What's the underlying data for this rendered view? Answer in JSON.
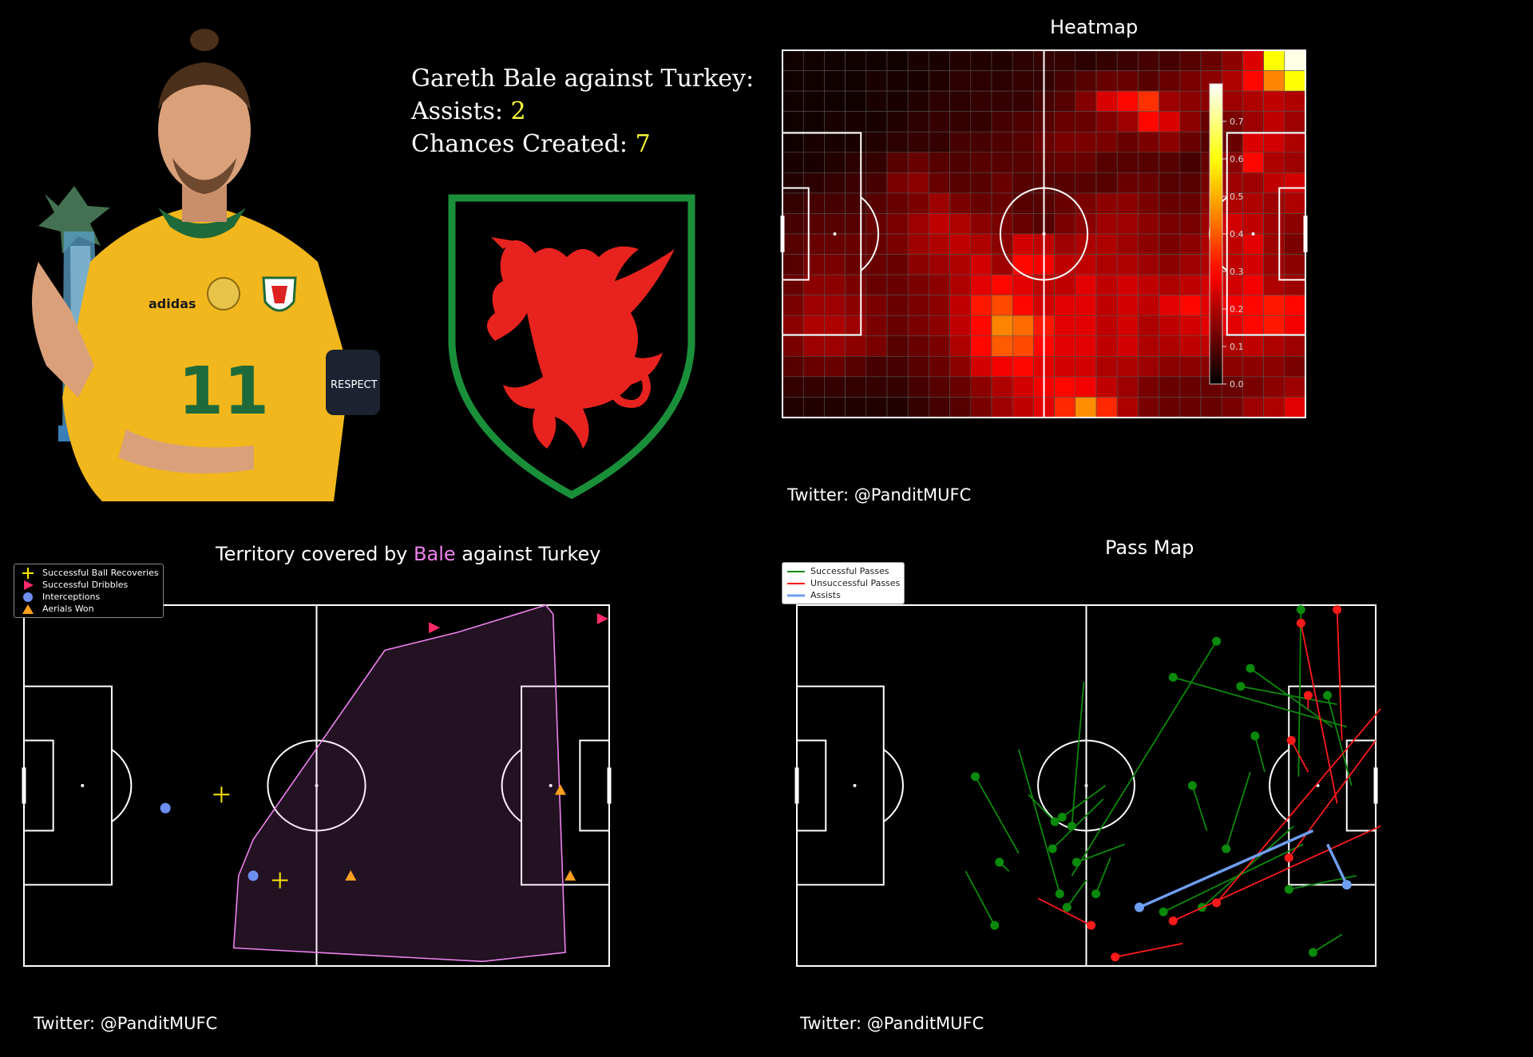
{
  "stats": {
    "line1": "Gareth Bale against Turkey:",
    "assists_label": "Assists: ",
    "assists_value": "2",
    "chances_label": "Chances Created: ",
    "chances_value": "7"
  },
  "colors": {
    "highlight": "#ffff3c",
    "bale_pink": "#ee82ee",
    "successful_pass": "#0a8a0a",
    "unsuccessful_pass": "#ff1a1a",
    "assist": "#6e9ef0",
    "recovery": "#ffe600",
    "dribble": "#ff2a6a",
    "interception": "#6e8ef0",
    "aerial": "#ffa020",
    "crest_green": "#1a8f3a",
    "crest_red": "#e8231f"
  },
  "photo": {
    "shirt_number": "11",
    "armband_text": "RESPECT",
    "brand_text": "adidas"
  },
  "heatmap": {
    "title": "Heatmap",
    "credit": "Twitter: @PanditMUFC",
    "colorbar_ticks": [
      "0.0",
      "0.1",
      "0.2",
      "0.3",
      "0.4",
      "0.5",
      "0.6",
      "0.7"
    ]
  },
  "territory": {
    "title_pre": "Territory covered by ",
    "title_name": "Bale",
    "title_post": " against Turkey",
    "credit": "Twitter: @PanditMUFC",
    "legend": [
      "Successful Ball Recoveries",
      "Successful Dribbles",
      "Interceptions",
      "Aerials Won"
    ]
  },
  "passmap": {
    "title": "Pass Map",
    "credit": "Twitter: @PanditMUFC",
    "legend": [
      "Successful Passes",
      "Unsuccessful Passes",
      "Assists"
    ]
  },
  "chart_data": [
    {
      "type": "heatmap",
      "title": "Heatmap",
      "grid": {
        "cols": 25,
        "rows": 18
      },
      "x_range": [
        0,
        120
      ],
      "y_range": [
        0,
        80
      ],
      "value_range": [
        0,
        0.8
      ],
      "values": [
        [
          0.02,
          0.02,
          0.02,
          0.02,
          0.02,
          0.02,
          0.03,
          0.03,
          0.04,
          0.04,
          0.04,
          0.05,
          0.06,
          0.06,
          0.05,
          0.06,
          0.07,
          0.08,
          0.08,
          0.1,
          0.12,
          0.16,
          0.25,
          0.6,
          0.78
        ],
        [
          0.02,
          0.02,
          0.02,
          0.02,
          0.03,
          0.03,
          0.03,
          0.04,
          0.05,
          0.05,
          0.05,
          0.06,
          0.06,
          0.08,
          0.1,
          0.12,
          0.12,
          0.1,
          0.12,
          0.14,
          0.16,
          0.2,
          0.3,
          0.45,
          0.6
        ],
        [
          0.02,
          0.02,
          0.02,
          0.02,
          0.03,
          0.03,
          0.04,
          0.05,
          0.05,
          0.06,
          0.06,
          0.06,
          0.08,
          0.1,
          0.15,
          0.25,
          0.3,
          0.35,
          0.18,
          0.16,
          0.16,
          0.18,
          0.2,
          0.22,
          0.2
        ],
        [
          0.02,
          0.02,
          0.03,
          0.03,
          0.03,
          0.04,
          0.05,
          0.06,
          0.06,
          0.06,
          0.08,
          0.09,
          0.1,
          0.12,
          0.12,
          0.15,
          0.18,
          0.3,
          0.25,
          0.16,
          0.12,
          0.14,
          0.18,
          0.22,
          0.18
        ],
        [
          0.02,
          0.03,
          0.03,
          0.03,
          0.04,
          0.05,
          0.06,
          0.06,
          0.08,
          0.08,
          0.09,
          0.1,
          0.12,
          0.14,
          0.14,
          0.14,
          0.12,
          0.14,
          0.16,
          0.12,
          0.1,
          0.12,
          0.25,
          0.24,
          0.2
        ],
        [
          0.03,
          0.03,
          0.04,
          0.05,
          0.06,
          0.1,
          0.12,
          0.1,
          0.09,
          0.1,
          0.1,
          0.1,
          0.11,
          0.12,
          0.12,
          0.1,
          0.1,
          0.1,
          0.1,
          0.08,
          0.12,
          0.16,
          0.3,
          0.2,
          0.18
        ],
        [
          0.04,
          0.05,
          0.06,
          0.07,
          0.08,
          0.14,
          0.16,
          0.12,
          0.1,
          0.1,
          0.12,
          0.1,
          0.1,
          0.1,
          0.1,
          0.1,
          0.12,
          0.12,
          0.1,
          0.1,
          0.14,
          0.18,
          0.18,
          0.22,
          0.24
        ],
        [
          0.06,
          0.08,
          0.08,
          0.08,
          0.1,
          0.12,
          0.14,
          0.18,
          0.14,
          0.12,
          0.12,
          0.1,
          0.1,
          0.12,
          0.14,
          0.16,
          0.16,
          0.14,
          0.12,
          0.12,
          0.16,
          0.2,
          0.2,
          0.18,
          0.2
        ],
        [
          0.08,
          0.1,
          0.1,
          0.1,
          0.12,
          0.14,
          0.18,
          0.22,
          0.2,
          0.16,
          0.14,
          0.12,
          0.1,
          0.14,
          0.16,
          0.18,
          0.18,
          0.16,
          0.14,
          0.14,
          0.18,
          0.24,
          0.22,
          0.18,
          0.16
        ],
        [
          0.1,
          0.12,
          0.12,
          0.12,
          0.12,
          0.14,
          0.18,
          0.2,
          0.22,
          0.2,
          0.16,
          0.24,
          0.22,
          0.18,
          0.2,
          0.2,
          0.18,
          0.16,
          0.14,
          0.16,
          0.2,
          0.22,
          0.26,
          0.18,
          0.14
        ],
        [
          0.1,
          0.14,
          0.14,
          0.12,
          0.12,
          0.12,
          0.16,
          0.18,
          0.2,
          0.24,
          0.18,
          0.3,
          0.28,
          0.22,
          0.22,
          0.2,
          0.2,
          0.18,
          0.16,
          0.18,
          0.2,
          0.22,
          0.24,
          0.18,
          0.16
        ],
        [
          0.12,
          0.16,
          0.16,
          0.14,
          0.12,
          0.12,
          0.14,
          0.16,
          0.2,
          0.26,
          0.3,
          0.26,
          0.22,
          0.22,
          0.26,
          0.22,
          0.24,
          0.22,
          0.2,
          0.22,
          0.24,
          0.24,
          0.28,
          0.2,
          0.18
        ],
        [
          0.14,
          0.18,
          0.18,
          0.16,
          0.14,
          0.12,
          0.14,
          0.16,
          0.22,
          0.32,
          0.38,
          0.3,
          0.24,
          0.26,
          0.26,
          0.22,
          0.24,
          0.22,
          0.26,
          0.3,
          0.26,
          0.28,
          0.3,
          0.32,
          0.3
        ],
        [
          0.16,
          0.2,
          0.2,
          0.18,
          0.14,
          0.12,
          0.14,
          0.16,
          0.22,
          0.3,
          0.45,
          0.42,
          0.32,
          0.26,
          0.26,
          0.22,
          0.24,
          0.2,
          0.22,
          0.24,
          0.26,
          0.26,
          0.3,
          0.32,
          0.28
        ],
        [
          0.14,
          0.18,
          0.18,
          0.16,
          0.14,
          0.1,
          0.12,
          0.14,
          0.2,
          0.3,
          0.4,
          0.38,
          0.3,
          0.26,
          0.26,
          0.22,
          0.24,
          0.2,
          0.2,
          0.22,
          0.22,
          0.2,
          0.22,
          0.2,
          0.18
        ],
        [
          0.1,
          0.12,
          0.12,
          0.1,
          0.08,
          0.08,
          0.1,
          0.12,
          0.16,
          0.24,
          0.28,
          0.3,
          0.26,
          0.24,
          0.24,
          0.2,
          0.2,
          0.18,
          0.16,
          0.16,
          0.16,
          0.16,
          0.16,
          0.16,
          0.14
        ],
        [
          0.06,
          0.06,
          0.06,
          0.06,
          0.06,
          0.06,
          0.08,
          0.1,
          0.12,
          0.16,
          0.2,
          0.24,
          0.28,
          0.3,
          0.28,
          0.22,
          0.18,
          0.14,
          0.12,
          0.12,
          0.12,
          0.12,
          0.14,
          0.16,
          0.18
        ],
        [
          0.04,
          0.04,
          0.04,
          0.04,
          0.04,
          0.04,
          0.06,
          0.08,
          0.1,
          0.14,
          0.18,
          0.22,
          0.26,
          0.34,
          0.46,
          0.34,
          0.2,
          0.14,
          0.12,
          0.12,
          0.12,
          0.14,
          0.18,
          0.2,
          0.26
        ]
      ]
    },
    {
      "type": "scatter",
      "title": "Territory covered by Bale against Turkey",
      "x_range": [
        0,
        120
      ],
      "y_range": [
        0,
        80
      ],
      "hull": [
        [
          107,
          80
        ],
        [
          89,
          74
        ],
        [
          74,
          70
        ],
        [
          47,
          28
        ],
        [
          44,
          20
        ],
        [
          43,
          4
        ],
        [
          94,
          1
        ],
        [
          111,
          3
        ],
        [
          108.5,
          78
        ]
      ],
      "series": [
        {
          "name": "Successful Ball Recoveries",
          "marker": "plus",
          "points": [
            [
              40.5,
              38
            ],
            [
              52.5,
              19
            ]
          ]
        },
        {
          "name": "Successful Dribbles",
          "marker": "triangle-right",
          "points": [
            [
              84,
              75
            ],
            [
              118.5,
              77
            ]
          ]
        },
        {
          "name": "Interceptions",
          "marker": "circle",
          "points": [
            [
              29,
              35
            ],
            [
              47,
              20
            ]
          ]
        },
        {
          "name": "Aerials Won",
          "marker": "triangle-up",
          "points": [
            [
              67,
              20
            ],
            [
              110,
              39
            ],
            [
              112,
              20
            ]
          ]
        }
      ]
    },
    {
      "type": "line",
      "title": "Pass Map",
      "x_range": [
        0,
        120
      ],
      "y_range": [
        0,
        80
      ],
      "series": [
        {
          "name": "Successful Passes",
          "passes": [
            [
              87,
              72,
              57,
              20
            ],
            [
              57,
              31,
              59.5,
              63
            ],
            [
              54.5,
              16,
              46,
              48
            ],
            [
              53.5,
              32,
              48,
              38
            ],
            [
              55,
              33,
              64,
              40
            ],
            [
              53,
              26,
              63.5,
              37
            ],
            [
              58,
              23,
              68,
              27
            ],
            [
              62,
              16,
              65,
              24
            ],
            [
              56,
              13,
              60,
              19
            ],
            [
              41,
              9,
              35,
              21
            ],
            [
              42,
              23,
              44,
              21
            ],
            [
              37,
              42,
              46,
              25
            ],
            [
              82,
              40,
              85,
              30
            ],
            [
              89,
              26,
              94,
              43
            ],
            [
              78,
              64,
              114,
              53
            ],
            [
              92,
              62,
              112,
              58
            ],
            [
              94,
              66,
              111,
              53
            ],
            [
              104.5,
              79,
              104,
              42
            ],
            [
              110,
              60,
              115,
              40
            ],
            [
              95,
              51,
              97,
              43
            ],
            [
              102,
              17,
              116,
              20
            ],
            [
              84,
              13,
              103,
              31
            ],
            [
              76,
              12,
              105,
              27
            ],
            [
              107,
              3,
              113,
              7
            ]
          ]
        },
        {
          "name": "Unsuccessful Passes",
          "passes": [
            [
              112,
              79,
              113,
              50
            ],
            [
              104.5,
              76,
              112,
              36
            ],
            [
              106,
              60,
              106,
              57
            ],
            [
              87,
              14,
              121,
              57
            ],
            [
              78,
              10,
              121,
              31
            ],
            [
              66,
              2,
              80,
              5
            ],
            [
              102.5,
              50,
              106,
              43
            ],
            [
              102,
              24,
              120,
              50
            ],
            [
              61,
              9,
              50,
              15
            ]
          ]
        },
        {
          "name": "Assists",
          "passes": [
            [
              71,
              13,
              107,
              30
            ],
            [
              114,
              18,
              110,
              27
            ]
          ]
        }
      ]
    }
  ]
}
